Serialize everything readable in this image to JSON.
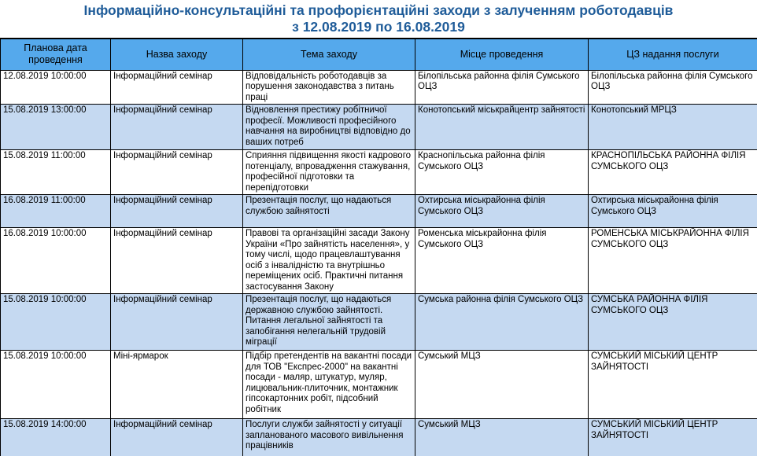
{
  "title": {
    "line1": "Інформаційно-консультаційні та профорієнтаційні заходи з залученням роботодавців",
    "line2": "з 12.08.2019 по 16.08.2019"
  },
  "colors": {
    "title_text": "#1F5C99",
    "header_background": "#55A9EC",
    "row_highlight": "#C5D9F1",
    "border": "#000000",
    "body_text": "#000000"
  },
  "table": {
    "columns": [
      "Планова дата проведення",
      "Назва заходу",
      "Тема заходу",
      "Місце проведення",
      "ЦЗ надання послуги"
    ],
    "rows": [
      [
        "12.08.2019 10:00:00",
        "Інформаційний семінар",
        "Відповідальність роботодавців за порушення законодавства з питань праці",
        "Білопільська районна філія Сумського ОЦЗ",
        "Білопільська районна філія Сумського ОЦЗ"
      ],
      [
        "15.08.2019 13:00:00",
        "Інформаційний семінар",
        "Відновлення престижу робітничої професії. Можливості професійного навчання на виробництві відповідно до ваших потреб",
        "Конотопський міськрайцентр зайнятості",
        "Конотопський МРЦЗ"
      ],
      [
        "15.08.2019 11:00:00",
        "Інформаційний семінар",
        "Сприяння підвищення якості кадрового потенціалу, впровадження стажування, професійної підготовки та перепідготовки",
        "Краснопільська районна філія Сумського ОЦЗ",
        "КРАСНОПІЛЬСЬКА РАЙОННА ФІЛІЯ СУМСЬКОГО ОЦЗ"
      ],
      [
        "16.08.2019 11:00:00",
        "Інформаційний семінар",
        "Презентація послуг, що надаються службою зайнятості",
        "Охтирська міськрайонна філія Сумського ОЦЗ",
        "Охтирська міськрайонна філія Сумського ОЦЗ"
      ],
      [
        "16.08.2019 10:00:00",
        "Інформаційний семінар",
        "Правові та організаційні засади Закону України «Про зайнятість населення», у тому числі, щодо працевлаштування осіб з інвалідністю та внутрішньо переміщених осіб. Практичні питання застосування Закону",
        "Роменська міськрайонна філія Сумського ОЦЗ",
        "РОМЕНСЬКА МІСЬКРАЙОННА ФІЛІЯ СУМСЬКОГО ОЦЗ"
      ],
      [
        "15.08.2019 10:00:00",
        "Інформаційний семінар",
        "Презентація послуг, що надаються державною службою зайнятості. Питання легальної зайнятості та запобігання нелегальній трудовій міграції",
        "Сумська районна філія Сумського ОЦЗ",
        "СУМСЬКА РАЙОННА ФІЛІЯ СУМСЬКОГО ОЦЗ"
      ],
      [
        "15.08.2019 10:00:00",
        "Міні-ярмарок",
        "Підбір претендентів на вакантні посади для ТОВ \"Експрес-2000\" на вакантні посади - маляр, штукатур, муляр, лицювальник-плиточник, монтажник гіпсокартонних робіт, підсобний робітник",
        "Сумський МЦЗ",
        "СУМСЬКИЙ МІСЬКИЙ ЦЕНТР ЗАЙНЯТОСТІ"
      ],
      [
        "15.08.2019 14:00:00",
        "Інформаційний семінар",
        "Послуги служби зайнятості у ситуації запланованого масового вивільнення працівників",
        "Сумський МЦЗ",
        "СУМСЬКИЙ МІСЬКИЙ ЦЕНТР ЗАЙНЯТОСТІ"
      ]
    ]
  }
}
